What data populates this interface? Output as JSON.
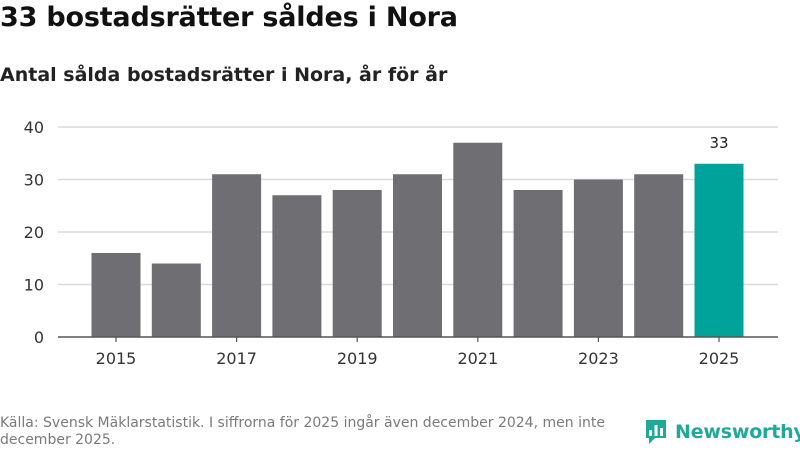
{
  "header": {
    "title": "33 bostadsrätter såldes i Nora",
    "subtitle": "Antal sålda bostadsrätter i Nora, år för år"
  },
  "chart_data": {
    "type": "bar",
    "categories": [
      "2015",
      "2016",
      "2017",
      "2018",
      "2019",
      "2020",
      "2021",
      "2022",
      "2023",
      "2024",
      "2025"
    ],
    "values": [
      16,
      14,
      31,
      27,
      28,
      31,
      37,
      28,
      30,
      31,
      33
    ],
    "x_tick_labels": [
      "2015",
      "2017",
      "2019",
      "2021",
      "2023",
      "2025"
    ],
    "yticks": [
      0,
      10,
      20,
      30,
      40
    ],
    "ylim": [
      0,
      40
    ],
    "highlight_category": "2025",
    "highlight_label": "33",
    "grid": true,
    "colors": {
      "bar": "#6e6e73",
      "highlight": "#00a399",
      "grid": "#d9d9d9",
      "axis": "#555555"
    }
  },
  "footer": {
    "source": "Källa: Svensk Mäklarstatistik. I siffrorna för 2025 ingår även december 2024, men inte december 2025."
  },
  "brand": {
    "name": "Newsworthy",
    "icon": "newsworthy-logo-icon",
    "color": "#20a89a"
  }
}
